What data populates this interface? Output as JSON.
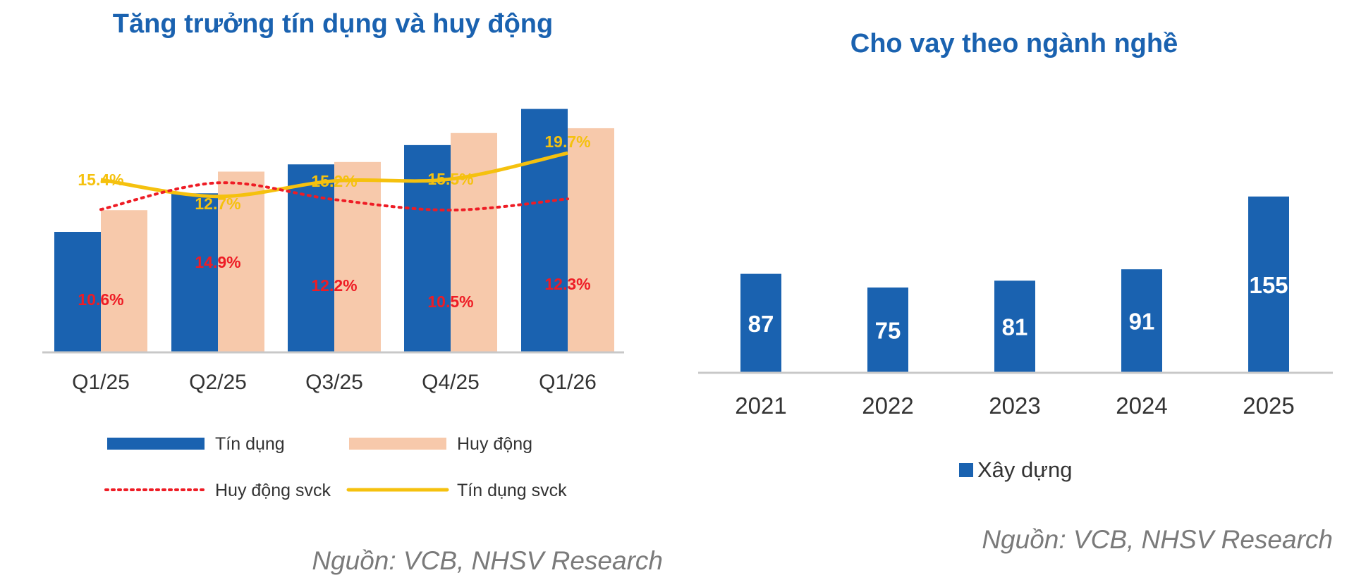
{
  "colors": {
    "title": "#1a62b0",
    "credit_bar": "#1a62b0",
    "mobilization_bar": "#f7c9ab",
    "credit_yoy": "#f5c10e",
    "mobilization_yoy": "#ee1c25",
    "axis": "#c8c8c8",
    "tick_text": "#333333",
    "source_text": "#7a7a7a"
  },
  "chart_data": [
    {
      "type": "bar",
      "title": "Tăng trưởng tín dụng và huy động",
      "categories": [
        "Q1/25",
        "Q2/25",
        "Q3/25",
        "Q4/25",
        "Q1/26"
      ],
      "series": [
        {
          "name": "Tín dụng",
          "kind": "bar",
          "values": [
            5.0,
            6.6,
            7.8,
            8.6,
            10.1
          ]
        },
        {
          "name": "Huy động",
          "kind": "bar",
          "values": [
            5.9,
            7.5,
            7.9,
            9.1,
            9.3
          ]
        },
        {
          "name": "Huy động svck",
          "kind": "line",
          "style": "dotted",
          "values": [
            10.6,
            14.9,
            12.2,
            10.5,
            12.3
          ],
          "labels": [
            "10.6%",
            "14.9%",
            "12.2%",
            "10.5%",
            "12.3%"
          ]
        },
        {
          "name": "Tín dụng svck",
          "kind": "line",
          "style": "solid",
          "values": [
            15.4,
            12.7,
            15.2,
            15.5,
            19.7
          ],
          "labels": [
            "15.4%",
            "12.7%",
            "15.2%",
            "15.5%",
            "19.7%"
          ]
        }
      ],
      "legend": "bottom",
      "grid": false,
      "source": "Nguồn: VCB, NHSV Research"
    },
    {
      "type": "bar",
      "title": "Cho vay theo ngành nghề",
      "categories": [
        "2021",
        "2022",
        "2023",
        "2024",
        "2025"
      ],
      "series": [
        {
          "name": "Xây dựng",
          "values": [
            87,
            75,
            81,
            91,
            155
          ]
        }
      ],
      "ylim": [
        0,
        160
      ],
      "legend": "bottom",
      "grid": false,
      "source": "Nguồn: VCB, NHSV Research"
    }
  ]
}
